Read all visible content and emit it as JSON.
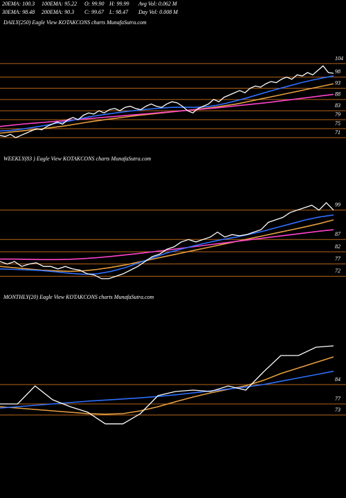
{
  "header": {
    "stats": [
      [
        "20EMA: 100.3",
        "100EMA: 95.22",
        "O: 99.90",
        "H: 99.99",
        "Avg Vol: 0.062 M"
      ],
      [
        "30EMA: 98.48",
        "200EMA: 90.3",
        "C: 99.67",
        "L: 98.47",
        "Day Vol: 0.008 M"
      ]
    ]
  },
  "chart_data": [
    {
      "type": "line",
      "title": "DAILY(250) Eagle View KOTAKCONS charts MunafaSutra.com",
      "ylim": [
        67,
        120
      ],
      "yticks": [
        71,
        75,
        79,
        83,
        88,
        93,
        98,
        104
      ],
      "grid": true,
      "grid_color": "#b8661a",
      "series": [
        {
          "color": "#e8a040",
          "values": [
            73,
            73.5,
            74,
            74.5,
            75,
            75.6,
            76.2,
            77,
            77.8,
            78.5,
            79.2,
            79.8,
            80.4,
            81,
            81.5,
            82,
            82.5,
            83,
            83.5,
            84,
            84.6,
            85.3,
            86,
            87,
            88,
            89,
            90,
            91,
            92,
            93,
            94,
            95
          ]
        },
        {
          "color": "#ff44cc",
          "values": [
            76,
            76.5,
            77,
            77.4,
            77.8,
            78.2,
            78.6,
            79,
            79.4,
            79.8,
            80.2,
            80.6,
            81,
            81.4,
            81.8,
            82.2,
            82.6,
            83,
            83.4,
            83.8,
            84.2,
            84.7,
            85.2,
            85.7,
            86.2,
            86.7,
            87.3,
            87.9,
            88.5,
            89.1,
            89.7,
            90.3
          ]
        },
        {
          "color": "#2f6fff",
          "values": [
            74,
            74.2,
            74.8,
            75.5,
            76.3,
            77.2,
            78,
            79,
            80,
            80.8,
            81.5,
            82.2,
            82.8,
            83.3,
            83.8,
            84.2,
            84.5,
            84.6,
            84.5,
            84.7,
            85.3,
            86.3,
            87.5,
            88.8,
            90.2,
            91.6,
            92.9,
            94.2,
            95.5,
            96.6,
            97.6,
            98.5
          ]
        },
        {
          "color": "#ffffff",
          "values": [
            72,
            71.5,
            72.5,
            71,
            72,
            73,
            74,
            75,
            74.5,
            76,
            77,
            78,
            77,
            79,
            80,
            79,
            81,
            82,
            81.5,
            83,
            82,
            83.5,
            84,
            83,
            84.5,
            85,
            84,
            83.5,
            85,
            86,
            85,
            84.5,
            86,
            87,
            86.5,
            85,
            83,
            82,
            84,
            85,
            86,
            88,
            87,
            89,
            90,
            91,
            92,
            91,
            93,
            94,
            93.5,
            95,
            96,
            95.5,
            97,
            98,
            97,
            99,
            98.5,
            100,
            99,
            101,
            103,
            100,
            99.67
          ]
        }
      ]
    },
    {
      "type": "line",
      "title": "WEEKLY(83 ) Eagle View KOTAKCONS charts MunafaSutra.com",
      "ylim": [
        69,
        117
      ],
      "yticks": [
        72,
        77,
        82,
        87,
        99
      ],
      "grid": true,
      "grid_color": "#b8661a",
      "series": [
        {
          "color": "#e8a040",
          "values": [
            76,
            75.5,
            75,
            74.5,
            74.2,
            74,
            74.2,
            74.8,
            75.6,
            76.6,
            77.8,
            79,
            80.2,
            81.4,
            82.6,
            83.8,
            85,
            86.2,
            87.4,
            88.6,
            89.8,
            91,
            92.2,
            93.5,
            95
          ]
        },
        {
          "color": "#ff44cc",
          "values": [
            79,
            79,
            78.9,
            78.8,
            78.8,
            78.9,
            79.2,
            79.6,
            80.1,
            80.7,
            81.3,
            82,
            82.7,
            83.4,
            84.1,
            84.8,
            85.5,
            86.2,
            86.9,
            87.6,
            88.3,
            89,
            89.7,
            90.4,
            91
          ]
        },
        {
          "color": "#2f6fff",
          "values": [
            75,
            74.8,
            74.6,
            74.3,
            73.8,
            73.2,
            72.8,
            73,
            74,
            75.5,
            77.5,
            79.5,
            81.5,
            83,
            84.5,
            85.8,
            87,
            88,
            89.2,
            90.5,
            92,
            93.5,
            95,
            96.2,
            97
          ]
        },
        {
          "color": "#ffffff",
          "values": [
            78,
            77,
            78,
            76,
            77,
            77.5,
            76,
            76,
            75,
            76,
            75,
            74.5,
            73,
            72.5,
            71,
            71,
            72,
            73,
            74.5,
            76,
            78,
            80,
            81,
            83,
            84,
            86,
            87,
            86,
            87,
            88,
            90,
            88,
            89,
            88.5,
            89,
            90,
            91,
            94,
            95,
            96,
            98,
            99,
            100,
            101,
            99,
            102,
            99
          ]
        }
      ]
    },
    {
      "type": "line",
      "title": "MONTHLY(20) Eagle View KOTAKCONS charts MunafaSutra.com",
      "ylim": [
        68,
        113
      ],
      "yticks": [
        73,
        77,
        84
      ],
      "grid": true,
      "grid_color": "#b8661a",
      "series": [
        {
          "color": "#e8a040",
          "values": [
            76,
            75.5,
            75,
            74.5,
            74,
            73.5,
            73.3,
            73.5,
            74.5,
            76,
            77.8,
            79.5,
            81,
            82.3,
            83.6,
            85.5,
            88,
            90,
            92,
            94
          ]
        },
        {
          "color": "#2f6fff",
          "values": [
            75.5,
            76,
            76.5,
            77,
            77.5,
            78,
            78.4,
            78.8,
            79.2,
            79.7,
            80.3,
            81,
            81.7,
            82.4,
            83.1,
            84,
            85.2,
            86.4,
            87.6,
            88.8
          ]
        },
        {
          "color": "#ffffff",
          "values": [
            77,
            77,
            83.5,
            78.5,
            76,
            74,
            69.8,
            69.8,
            73.5,
            80,
            81.5,
            82,
            81.5,
            83.5,
            82,
            88.5,
            94.5,
            94.5,
            97.5,
            98
          ]
        }
      ]
    }
  ]
}
